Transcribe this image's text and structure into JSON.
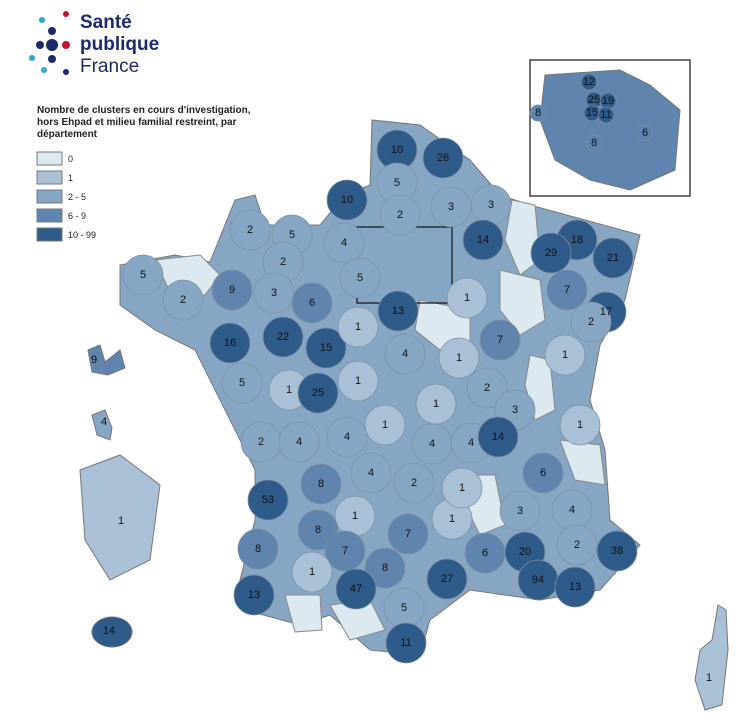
{
  "logo": {
    "lines": [
      "Santé",
      "publique",
      "France"
    ]
  },
  "legend": {
    "title_lines": [
      "Nombre de clusters en cours d'investigation,",
      "hors Ehpad et milieu familial restreint, par",
      "département"
    ],
    "classes": [
      {
        "label": "0",
        "color": "#dde9f1"
      },
      {
        "label": "1",
        "color": "#a9c0d6"
      },
      {
        "label": "2 - 5",
        "color": "#86a6c4"
      },
      {
        "label": "6 - 9",
        "color": "#5f84ad"
      },
      {
        "label": "10 - 99",
        "color": "#2f5b8a"
      }
    ]
  },
  "departments": [
    {
      "value": 10,
      "color": "#2f5b8a"
    },
    {
      "value": 26,
      "color": "#2f5b8a"
    },
    {
      "value": 5,
      "color": "#86a6c4"
    },
    {
      "value": 3,
      "color": "#86a6c4"
    },
    {
      "value": 3,
      "color": "#86a6c4"
    },
    {
      "value": 10,
      "color": "#2f5b8a"
    },
    {
      "value": 2,
      "color": "#86a6c4"
    },
    {
      "value": 4,
      "color": "#86a6c4"
    },
    {
      "value": 14,
      "color": "#2f5b8a"
    },
    {
      "value": 18,
      "color": "#2f5b8a"
    },
    {
      "value": 29,
      "color": "#2f5b8a"
    },
    {
      "value": 21,
      "color": "#2f5b8a"
    },
    {
      "value": 2,
      "color": "#86a6c4"
    },
    {
      "value": 5,
      "color": "#86a6c4"
    },
    {
      "value": 2,
      "color": "#86a6c4"
    },
    {
      "value": 5,
      "color": "#86a6c4"
    },
    {
      "value": 9,
      "color": "#5f84ad"
    },
    {
      "value": 3,
      "color": "#86a6c4"
    },
    {
      "value": 6,
      "color": "#5f84ad"
    },
    {
      "value": 2,
      "color": "#86a6c4"
    },
    {
      "value": 5,
      "color": "#86a6c4"
    },
    {
      "value": 13,
      "color": "#2f5b8a"
    },
    {
      "value": 1,
      "color": "#a9c0d6"
    },
    {
      "value": 7,
      "color": "#5f84ad"
    },
    {
      "value": 17,
      "color": "#2f5b8a"
    },
    {
      "value": 2,
      "color": "#86a6c4"
    },
    {
      "value": 16,
      "color": "#2f5b8a"
    },
    {
      "value": 22,
      "color": "#2f5b8a"
    },
    {
      "value": 15,
      "color": "#2f5b8a"
    },
    {
      "value": 1,
      "color": "#a9c0d6"
    },
    {
      "value": 4,
      "color": "#86a6c4"
    },
    {
      "value": 1,
      "color": "#a9c0d6"
    },
    {
      "value": 7,
      "color": "#5f84ad"
    },
    {
      "value": 1,
      "color": "#a9c0d6"
    },
    {
      "value": 5,
      "color": "#86a6c4"
    },
    {
      "value": 1,
      "color": "#a9c0d6"
    },
    {
      "value": 25,
      "color": "#2f5b8a"
    },
    {
      "value": 1,
      "color": "#a9c0d6"
    },
    {
      "value": 2,
      "color": "#86a6c4"
    },
    {
      "value": 1,
      "color": "#a9c0d6"
    },
    {
      "value": 3,
      "color": "#86a6c4"
    },
    {
      "value": 1,
      "color": "#a9c0d6"
    },
    {
      "value": 2,
      "color": "#86a6c4"
    },
    {
      "value": 4,
      "color": "#86a6c4"
    },
    {
      "value": 4,
      "color": "#86a6c4"
    },
    {
      "value": 1,
      "color": "#a9c0d6"
    },
    {
      "value": 4,
      "color": "#86a6c4"
    },
    {
      "value": 4,
      "color": "#86a6c4"
    },
    {
      "value": 14,
      "color": "#2f5b8a"
    },
    {
      "value": 8,
      "color": "#5f84ad"
    },
    {
      "value": 4,
      "color": "#86a6c4"
    },
    {
      "value": 2,
      "color": "#86a6c4"
    },
    {
      "value": 1,
      "color": "#a9c0d6"
    },
    {
      "value": 6,
      "color": "#5f84ad"
    },
    {
      "value": 53,
      "color": "#2f5b8a"
    },
    {
      "value": 1,
      "color": "#a9c0d6"
    },
    {
      "value": 1,
      "color": "#a9c0d6"
    },
    {
      "value": 3,
      "color": "#86a6c4"
    },
    {
      "value": 4,
      "color": "#86a6c4"
    },
    {
      "value": 8,
      "color": "#5f84ad"
    },
    {
      "value": 7,
      "color": "#5f84ad"
    },
    {
      "value": 2,
      "color": "#86a6c4"
    },
    {
      "value": 38,
      "color": "#2f5b8a"
    },
    {
      "value": 8,
      "color": "#5f84ad"
    },
    {
      "value": 7,
      "color": "#5f84ad"
    },
    {
      "value": 6,
      "color": "#5f84ad"
    },
    {
      "value": 20,
      "color": "#2f5b8a"
    },
    {
      "value": 1,
      "color": "#a9c0d6"
    },
    {
      "value": 8,
      "color": "#5f84ad"
    },
    {
      "value": 27,
      "color": "#2f5b8a"
    },
    {
      "value": 94,
      "color": "#2f5b8a"
    },
    {
      "value": 13,
      "color": "#2f5b8a"
    },
    {
      "value": 47,
      "color": "#2f5b8a"
    },
    {
      "value": 13,
      "color": "#2f5b8a"
    },
    {
      "value": 5,
      "color": "#86a6c4"
    },
    {
      "value": 11,
      "color": "#2f5b8a"
    },
    {
      "value": 9,
      "color": "#5f84ad"
    },
    {
      "value": 4,
      "color": "#86a6c4"
    },
    {
      "value": 1,
      "color": "#a9c0d6"
    },
    {
      "value": 14,
      "color": "#2f5b8a"
    },
    {
      "value": 1,
      "color": "#a9c0d6"
    },
    {
      "value": 12,
      "color": "#2f5b8a"
    },
    {
      "value": 8,
      "color": "#5f84ad"
    },
    {
      "value": 25,
      "color": "#2f5b8a"
    },
    {
      "value": 19,
      "color": "#2f5b8a"
    },
    {
      "value": 15,
      "color": "#2f5b8a"
    },
    {
      "value": 11,
      "color": "#2f5b8a"
    },
    {
      "value": 8,
      "color": "#5f84ad"
    },
    {
      "value": 6,
      "color": "#5f84ad"
    }
  ]
}
